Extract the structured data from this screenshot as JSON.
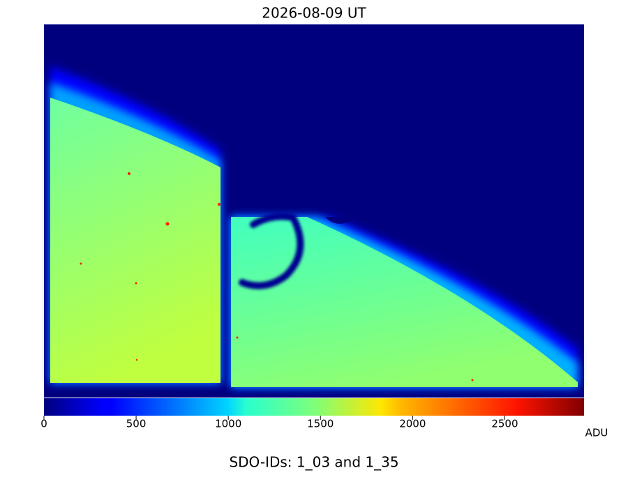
{
  "chart_data": {
    "type": "image",
    "title": "2026-08-09 UT",
    "colorbar": {
      "label": "ADU",
      "lim": [
        0,
        2930
      ],
      "ticks": [
        0,
        500,
        1000,
        1500,
        2000,
        2500
      ],
      "colormap": "jet"
    },
    "caption": "SDO-IDs: 1_03 and 1_35"
  }
}
